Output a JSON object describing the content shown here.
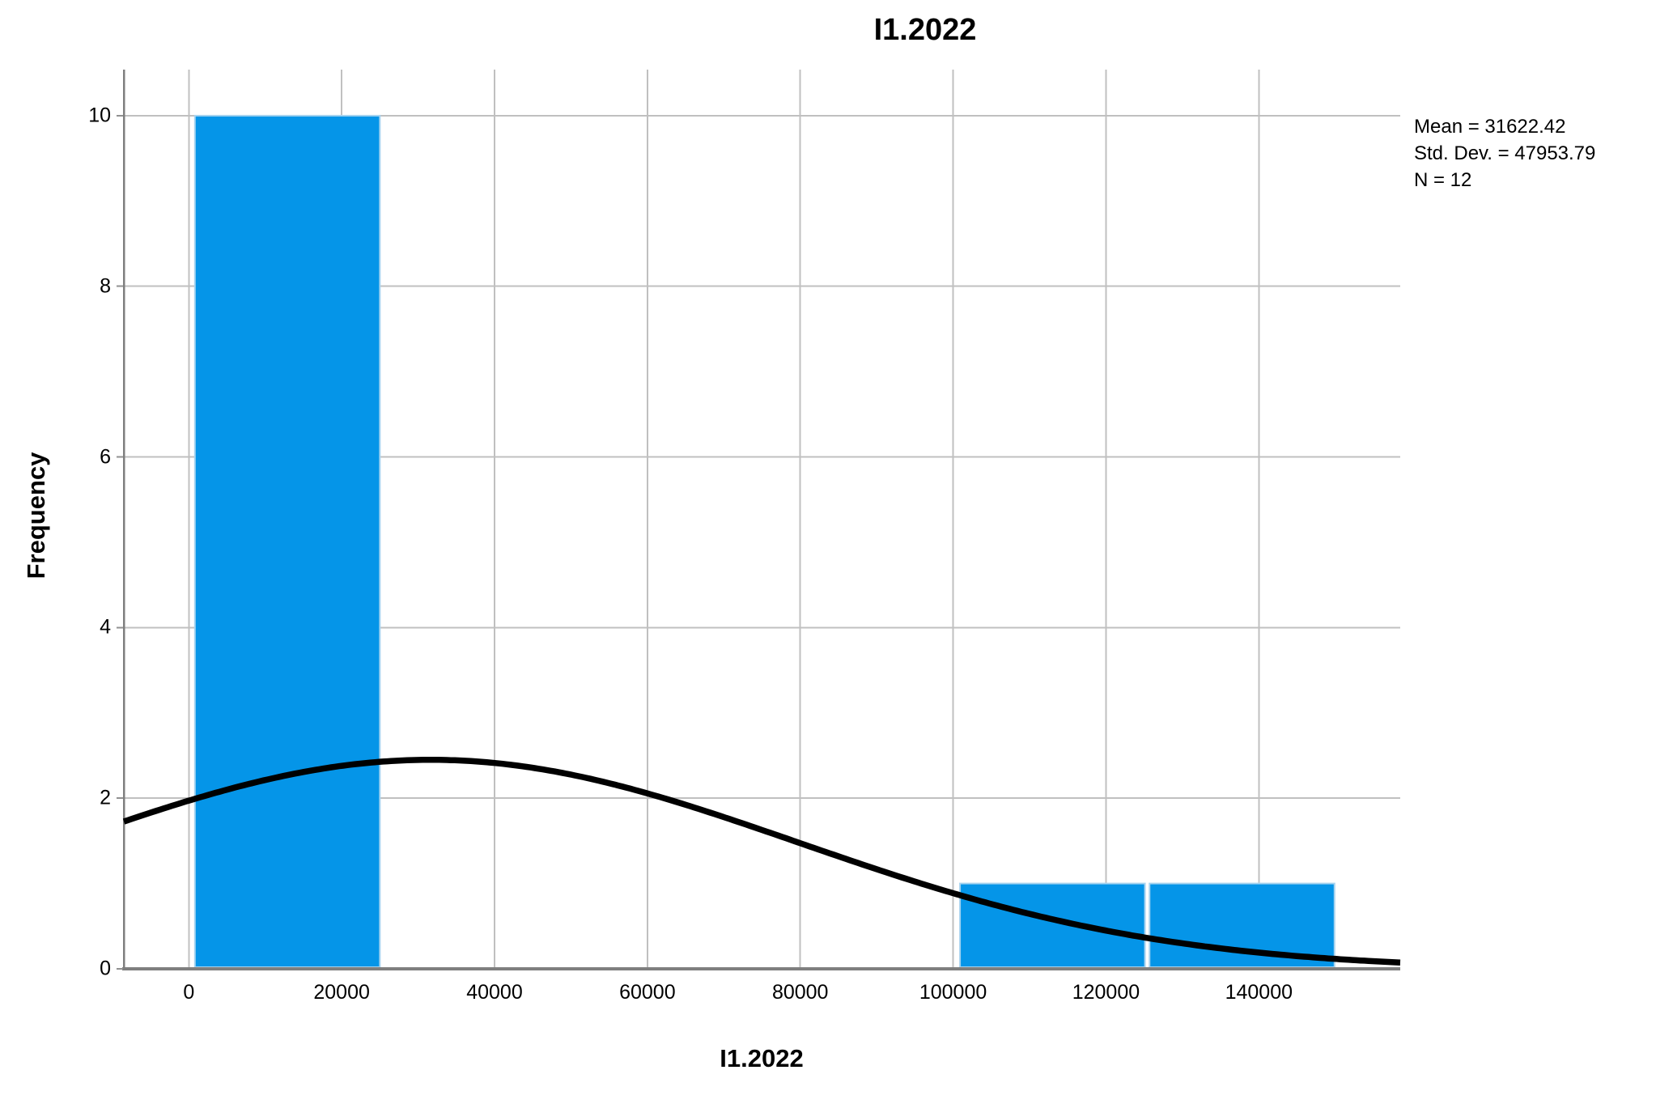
{
  "chart_data": {
    "type": "histogram",
    "title": "I1.2022",
    "xlabel": "I1.2022",
    "ylabel": "Frequency",
    "x_ticks": [
      0,
      20000,
      40000,
      60000,
      80000,
      100000,
      120000,
      140000
    ],
    "y_ticks": [
      0,
      2,
      4,
      6,
      8,
      10
    ],
    "xlim": [
      -8500,
      158500
    ],
    "ylim": [
      0,
      10.54
    ],
    "grid": true,
    "legend": "none",
    "bars": [
      {
        "x0": 800,
        "x1": 25000,
        "frequency": 10
      },
      {
        "x0": 100900,
        "x1": 125100,
        "frequency": 1
      },
      {
        "x0": 125700,
        "x1": 149900,
        "frequency": 1
      }
    ],
    "normal_curve": {
      "mean": 31622.42,
      "std_dev": 47953.79,
      "peak_height": 2.45
    },
    "stats_box": {
      "lines": [
        "Mean = 31622.42",
        "Std. Dev. = 47953.79",
        "N = 12"
      ]
    },
    "colors": {
      "bar_fill": "#0595e8",
      "bar_border": "#a6d3f0",
      "grid": "#c0c0c0",
      "axis": "#7f7f7f",
      "tick": "#909090",
      "curve": "#000000",
      "text": "#000000"
    }
  }
}
